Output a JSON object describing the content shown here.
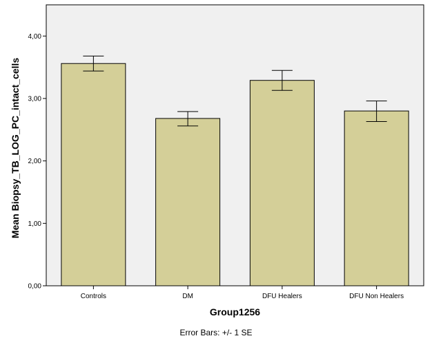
{
  "chart_data": {
    "type": "bar",
    "categories": [
      "Controls",
      "DM",
      "DFU Healers",
      "DFU Non Healers"
    ],
    "values": [
      3.56,
      2.68,
      3.29,
      2.8
    ],
    "error_low": [
      3.44,
      2.56,
      3.13,
      2.63
    ],
    "error_high": [
      3.68,
      2.79,
      3.45,
      2.96
    ],
    "xlabel": "Group1256",
    "ylabel": "Mean Biopsy_TB_LOG_PC_intact_cells",
    "ylim": [
      0,
      4.5
    ],
    "yticks": [
      "0,00",
      "1,00",
      "2,00",
      "3,00",
      "4,00"
    ],
    "ytick_values": [
      0,
      1,
      2,
      3,
      4
    ],
    "footnote": "Error Bars: +/- 1 SE",
    "grid": false,
    "colors": {
      "bar_fill": "#d4cf98",
      "plot_background": "#f0f0f0",
      "bar_stroke": "#000000"
    }
  }
}
